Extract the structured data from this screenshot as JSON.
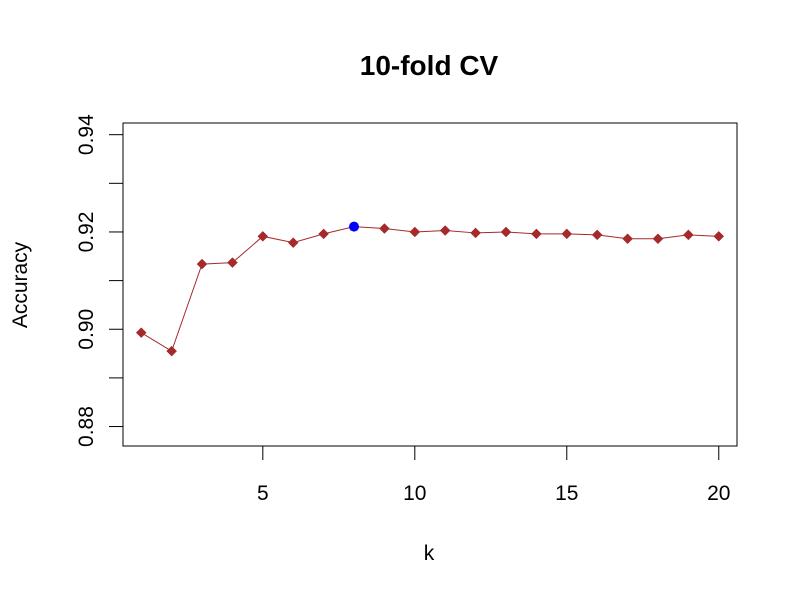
{
  "chart_data": {
    "type": "line",
    "title": "10-fold CV",
    "xlabel": "k",
    "ylabel": "Accuracy",
    "xlim": [
      0.4,
      20.6
    ],
    "ylim": [
      0.876,
      0.9424
    ],
    "x_ticks": [
      5,
      10,
      15,
      20
    ],
    "x_tick_labels": [
      "5",
      "10",
      "15",
      "20"
    ],
    "y_ticks": [
      0.88,
      0.89,
      0.9,
      0.91,
      0.92,
      0.93,
      0.94
    ],
    "y_tick_labels": [
      "0.88",
      "",
      "0.90",
      "",
      "0.92",
      "",
      "0.94"
    ],
    "grid": false,
    "series": [
      {
        "x": [
          1,
          2,
          3,
          4,
          5,
          6,
          7,
          8,
          9,
          10,
          11,
          12,
          13,
          14,
          15,
          16,
          17,
          18,
          19,
          20
        ],
        "values": [
          0.8993,
          0.8955,
          0.9134,
          0.9137,
          0.9191,
          0.9178,
          0.9196,
          0.9211,
          0.9207,
          0.92,
          0.9203,
          0.9198,
          0.92,
          0.9196,
          0.9196,
          0.9194,
          0.9186,
          0.9186,
          0.9194,
          0.9191
        ],
        "color": "#a52a2a",
        "marker": "diamond"
      }
    ],
    "highlight": {
      "x": 8,
      "y": 0.9211,
      "color": "#0000ff",
      "marker": "circle"
    }
  }
}
